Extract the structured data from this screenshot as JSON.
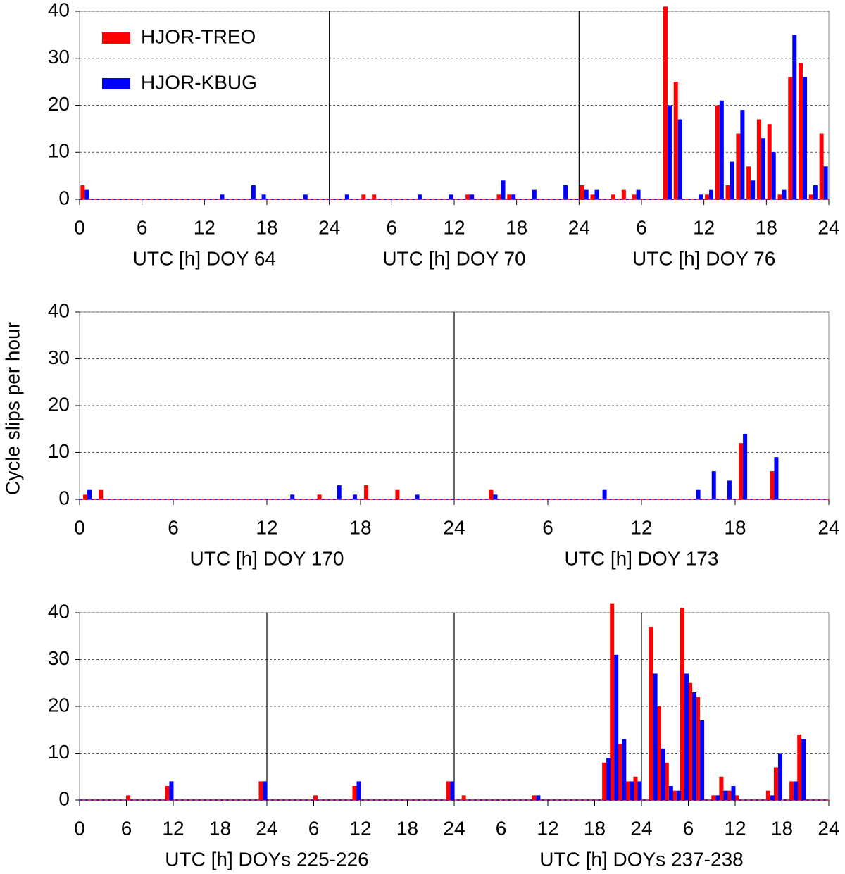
{
  "y_label": "Cycle slips per hour",
  "chart_data": [
    {
      "type": "bar",
      "xlabels": [
        "UTC [h] DOY 64",
        "UTC [h] DOY 70",
        "UTC [h] DOY 76"
      ],
      "x": [
        0,
        13,
        16,
        17,
        21,
        25,
        27,
        28,
        32,
        35,
        37,
        40,
        41,
        43,
        46,
        48,
        49,
        51,
        52,
        53,
        56,
        57,
        59,
        60,
        61,
        62,
        63,
        64,
        65,
        66,
        67,
        68,
        69,
        70,
        71
      ],
      "series": [
        {
          "name": "HJOR-TREO",
          "color": "#ff0000",
          "values": [
            3,
            0,
            0,
            0,
            0,
            0,
            1,
            1,
            0,
            0,
            1,
            1,
            1,
            0,
            0,
            3,
            1,
            1,
            2,
            1,
            41,
            25,
            0,
            1,
            20,
            3,
            14,
            7,
            17,
            16,
            1,
            26,
            29,
            1,
            14
          ]
        },
        {
          "name": "HJOR-KBUG",
          "color": "#0000ff",
          "values": [
            2,
            1,
            3,
            1,
            1,
            1,
            0,
            0,
            1,
            1,
            1,
            4,
            1,
            2,
            3,
            2,
            2,
            0,
            0,
            2,
            20,
            17,
            1,
            2,
            21,
            8,
            19,
            4,
            13,
            10,
            2,
            35,
            26,
            3,
            7
          ]
        }
      ],
      "xlim": [
        0,
        72
      ],
      "xticks": [
        0,
        6,
        12,
        18,
        24,
        {
          "value": 30,
          "label": "6"
        },
        {
          "value": 36,
          "label": "12"
        },
        {
          "value": 42,
          "label": "18"
        },
        {
          "value": 48,
          "label": "24"
        },
        {
          "value": 54,
          "label": "6"
        },
        {
          "value": 60,
          "label": "12"
        },
        {
          "value": 66,
          "label": "18"
        },
        {
          "value": 72,
          "label": "24"
        }
      ],
      "ylim": [
        0,
        40
      ],
      "yticks": [
        0,
        10,
        20,
        30,
        40
      ],
      "grid": true,
      "legend": "upper-left"
    },
    {
      "type": "bar",
      "xlabels": [
        "UTC [h] DOY 170",
        "UTC [h] DOY 173"
      ],
      "x": [
        0,
        1,
        13,
        15,
        16,
        17,
        18,
        20,
        21,
        26,
        33,
        39,
        40,
        41,
        42,
        44
      ],
      "series": [
        {
          "color": "#ff0000",
          "values": [
            1,
            2,
            0,
            1,
            0,
            0,
            3,
            2,
            0,
            2,
            0,
            0,
            0,
            0,
            12,
            6
          ]
        },
        {
          "color": "#0000ff",
          "values": [
            2,
            0,
            1,
            0,
            3,
            1,
            0,
            0,
            1,
            1,
            2,
            2,
            6,
            4,
            14,
            9
          ]
        }
      ],
      "xlim": [
        0,
        48
      ],
      "xticks": [
        0,
        6,
        12,
        18,
        24,
        {
          "value": 30,
          "label": "6"
        },
        {
          "value": 36,
          "label": "12"
        },
        {
          "value": 42,
          "label": "18"
        },
        {
          "value": 48,
          "label": "24"
        }
      ],
      "ylim": [
        0,
        40
      ],
      "yticks": [
        0,
        10,
        20,
        30,
        40
      ],
      "grid": true
    },
    {
      "type": "bar",
      "xlabels": [
        "UTC [h] DOYs 225-226",
        "UTC [h] DOYs 237-238"
      ],
      "x": [
        6,
        11,
        23,
        30,
        35,
        47,
        49,
        58,
        67,
        68,
        69,
        70,
        71,
        73,
        74,
        75,
        76,
        77,
        78,
        79,
        81,
        82,
        83,
        84,
        88,
        89,
        91,
        92
      ],
      "series": [
        {
          "color": "#ff0000",
          "values": [
            1,
            3,
            4,
            1,
            3,
            4,
            1,
            1,
            8,
            42,
            12,
            4,
            5,
            37,
            20,
            8,
            2,
            41,
            25,
            22,
            1,
            5,
            2,
            1,
            2,
            7,
            4,
            14
          ]
        },
        {
          "color": "#0000ff",
          "values": [
            0,
            4,
            4,
            0,
            4,
            4,
            0,
            1,
            9,
            31,
            13,
            4,
            4,
            27,
            11,
            3,
            2,
            27,
            23,
            17,
            1,
            2,
            3,
            0,
            1,
            10,
            4,
            13
          ]
        }
      ],
      "xlim": [
        0,
        96
      ],
      "xticks": [
        0,
        6,
        12,
        18,
        24,
        {
          "value": 30,
          "label": "6"
        },
        {
          "value": 36,
          "label": "12"
        },
        {
          "value": 42,
          "label": "18"
        },
        {
          "value": 48,
          "label": "24"
        },
        {
          "value": 54,
          "label": "6"
        },
        {
          "value": 60,
          "label": "12"
        },
        {
          "value": 66,
          "label": "18"
        },
        {
          "value": 72,
          "label": "24"
        },
        {
          "value": 78,
          "label": "6"
        },
        {
          "value": 84,
          "label": "12"
        },
        {
          "value": 90,
          "label": "18"
        },
        {
          "value": 96,
          "label": "24"
        }
      ],
      "ylim": [
        0,
        40
      ],
      "yticks": [
        0,
        10,
        20,
        30,
        40
      ],
      "grid": true
    }
  ]
}
